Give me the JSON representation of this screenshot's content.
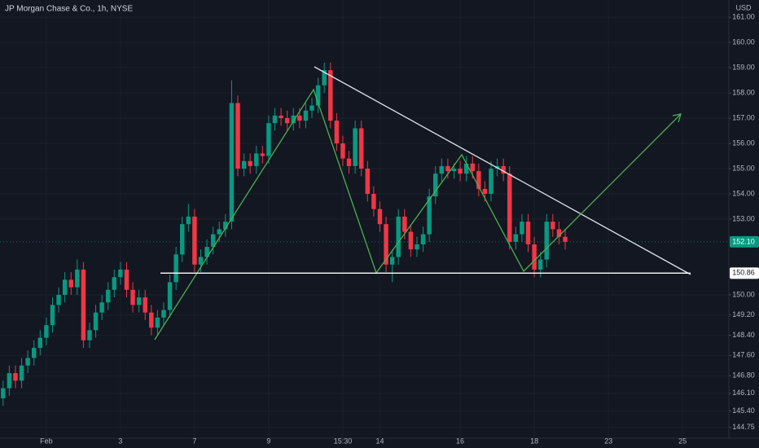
{
  "chart_data": {
    "type": "candlestick",
    "title": "JP Morgan Chase & Co., 1h, NYSE",
    "currency": "USD",
    "up_color": "#089981",
    "down_color": "#f23645",
    "grid": true,
    "categories": [
      null,
      null,
      null,
      null,
      null,
      null,
      null,
      "Feb",
      null,
      null,
      null,
      null,
      null,
      null,
      null,
      null,
      null,
      null,
      null,
      "3",
      null,
      null,
      null,
      null,
      null,
      null,
      null,
      null,
      null,
      null,
      null,
      "7",
      null,
      null,
      null,
      null,
      null,
      null,
      null,
      null,
      null,
      null,
      null,
      "9",
      null,
      null,
      null,
      null,
      null,
      null,
      null,
      null,
      null,
      null,
      null,
      "15:30",
      null,
      null,
      null,
      null,
      null,
      "14",
      null,
      null,
      null,
      null,
      null,
      null,
      null,
      null,
      null,
      null,
      null,
      null,
      "16",
      null,
      null,
      null,
      null,
      null,
      null,
      null,
      null,
      null,
      null,
      null,
      "18",
      null,
      null,
      null,
      null,
      null,
      null,
      null,
      null,
      null,
      null,
      null,
      "23",
      null,
      null,
      null,
      null,
      null,
      null,
      null,
      null,
      null,
      null,
      null,
      "25",
      null,
      null,
      null,
      null,
      null,
      null,
      null
    ],
    "open": [
      145.9,
      146.3,
      146.9,
      146.6,
      147.2,
      147.5,
      147.9,
      148.3,
      148.8,
      149.6,
      150.0,
      150.6,
      150.3,
      151.0,
      148.2,
      148.6,
      149.3,
      149.7,
      150.2,
      150.7,
      151.0,
      150.2,
      149.6,
      149.9,
      149.3,
      148.7,
      149.1,
      149.4,
      150.5,
      151.6,
      152.8,
      153.1,
      151.2,
      151.5,
      151.9,
      152.4,
      152.6,
      152.9,
      157.6,
      155.0,
      155.3,
      155.1,
      155.6,
      155.5,
      156.8,
      157.1,
      157.0,
      156.8,
      157.1,
      156.9,
      157.3,
      157.5,
      158.3,
      158.9,
      156.9,
      156.0,
      155.4,
      155.1,
      156.6,
      155.0,
      154.0,
      153.4,
      152.8,
      151.2,
      151.5,
      153.1,
      152.5,
      151.8,
      152.0,
      152.4,
      153.9,
      154.8,
      155.1,
      154.9,
      155.0,
      154.8,
      155.2,
      154.9,
      154.2,
      154.0,
      155.0,
      155.1,
      154.8,
      152.1,
      152.4,
      152.9,
      152.0,
      151.0,
      151.4,
      152.9,
      152.6,
      152.3,
      null,
      null,
      null,
      null,
      null,
      null,
      null,
      null,
      null,
      null,
      null,
      null,
      null,
      null,
      null,
      null,
      null,
      null,
      null,
      null,
      null,
      null,
      null,
      null,
      null,
      null
    ],
    "high": [
      146.6,
      147.2,
      147.2,
      147.5,
      147.8,
      148.2,
      148.6,
      149.1,
      149.9,
      150.3,
      150.9,
      150.9,
      151.4,
      151.3,
      148.9,
      149.6,
      150.0,
      150.5,
      151.0,
      151.3,
      151.3,
      150.5,
      150.2,
      150.2,
      149.6,
      149.4,
      149.7,
      150.8,
      151.9,
      153.1,
      153.6,
      153.4,
      151.8,
      152.2,
      152.7,
      152.9,
      153.2,
      158.5,
      157.9,
      155.6,
      155.6,
      155.9,
      155.9,
      157.1,
      157.4,
      157.4,
      157.3,
      157.4,
      157.4,
      157.6,
      157.8,
      158.6,
      159.2,
      159.2,
      157.2,
      156.3,
      155.7,
      156.9,
      156.9,
      155.3,
      154.3,
      153.7,
      153.1,
      151.8,
      153.4,
      153.4,
      152.8,
      152.3,
      152.7,
      154.2,
      155.1,
      155.4,
      155.4,
      155.2,
      155.3,
      155.5,
      155.5,
      155.2,
      154.5,
      155.3,
      155.4,
      155.4,
      155.1,
      152.7,
      153.2,
      153.2,
      152.3,
      151.7,
      153.2,
      153.2,
      152.9,
      152.6,
      null,
      null,
      null,
      null,
      null,
      null,
      null,
      null,
      null,
      null,
      null,
      null,
      null,
      null,
      null,
      null,
      null,
      null,
      null,
      null,
      null,
      null,
      null,
      null,
      null,
      null
    ],
    "low": [
      145.6,
      146.0,
      146.3,
      146.3,
      146.9,
      147.2,
      147.6,
      148.0,
      148.5,
      149.3,
      149.7,
      150.0,
      150.0,
      147.9,
      147.9,
      148.3,
      149.0,
      149.4,
      149.9,
      150.4,
      149.9,
      149.3,
      149.3,
      149.0,
      148.4,
      148.4,
      148.8,
      149.1,
      150.2,
      151.3,
      152.5,
      150.9,
      150.9,
      151.2,
      151.6,
      152.1,
      152.3,
      152.6,
      154.7,
      154.7,
      154.8,
      154.8,
      155.2,
      155.2,
      156.5,
      156.7,
      156.5,
      156.5,
      156.6,
      156.6,
      157.0,
      157.2,
      158.0,
      156.6,
      155.7,
      155.1,
      154.8,
      154.8,
      154.7,
      153.7,
      153.1,
      152.5,
      150.9,
      150.5,
      151.2,
      152.2,
      151.5,
      151.5,
      151.7,
      152.1,
      153.6,
      154.5,
      154.6,
      154.6,
      154.5,
      154.5,
      154.6,
      153.9,
      153.7,
      153.7,
      154.7,
      154.5,
      151.8,
      151.8,
      152.1,
      151.7,
      150.7,
      150.7,
      151.1,
      152.3,
      152.0,
      151.8,
      null,
      null,
      null,
      null,
      null,
      null,
      null,
      null,
      null,
      null,
      null,
      null,
      null,
      null,
      null,
      null,
      null,
      null,
      null,
      null,
      null,
      null,
      null,
      null,
      null,
      null
    ],
    "close": [
      146.3,
      146.9,
      146.6,
      147.2,
      147.5,
      147.9,
      148.3,
      148.8,
      149.6,
      150.0,
      150.6,
      150.3,
      151.0,
      148.2,
      148.6,
      149.3,
      149.7,
      150.2,
      150.7,
      151.0,
      150.2,
      149.6,
      149.9,
      149.3,
      148.7,
      149.1,
      149.4,
      150.5,
      151.6,
      152.8,
      153.1,
      151.2,
      151.5,
      151.9,
      152.4,
      152.6,
      152.9,
      157.6,
      155.0,
      155.3,
      155.1,
      155.6,
      155.5,
      156.8,
      157.1,
      157.0,
      156.8,
      157.1,
      156.9,
      157.3,
      157.5,
      158.3,
      158.9,
      156.9,
      156.0,
      155.4,
      155.1,
      156.6,
      155.0,
      154.0,
      153.4,
      152.8,
      151.2,
      151.5,
      153.1,
      152.5,
      151.8,
      152.0,
      152.4,
      153.9,
      154.8,
      155.1,
      154.9,
      155.0,
      154.8,
      155.2,
      154.9,
      154.2,
      154.0,
      155.0,
      155.1,
      154.8,
      152.1,
      152.4,
      152.9,
      152.0,
      151.0,
      151.4,
      152.9,
      152.6,
      152.3,
      152.1,
      null,
      null,
      null,
      null,
      null,
      null,
      null,
      null,
      null,
      null,
      null,
      null,
      null,
      null,
      null,
      null,
      null,
      null,
      null,
      null,
      null,
      null,
      null,
      null,
      null,
      null
    ],
    "ylim": [
      144.32,
      161.68
    ],
    "yticks": [
      {
        "value": 161,
        "label": "161.00"
      },
      {
        "value": 160,
        "label": "160.00"
      },
      {
        "value": 159,
        "label": "159.00"
      },
      {
        "value": 158,
        "label": "158.00"
      },
      {
        "value": 157,
        "label": "157.00"
      },
      {
        "value": 156,
        "label": "156.00"
      },
      {
        "value": 155,
        "label": "155.00"
      },
      {
        "value": 154,
        "label": "154.00"
      },
      {
        "value": 153,
        "label": "153.00"
      },
      {
        "value": 150,
        "label": "150.00"
      },
      {
        "value": 149.2,
        "label": "149.20"
      },
      {
        "value": 148.4,
        "label": "148.40"
      },
      {
        "value": 147.6,
        "label": "147.60"
      },
      {
        "value": 146.8,
        "label": "146.80"
      },
      {
        "value": 146.1,
        "label": "146.10"
      },
      {
        "value": 145.4,
        "label": "145.40"
      },
      {
        "value": 144.75,
        "label": "144.75"
      }
    ],
    "price_lines": [
      {
        "value": 152.1,
        "label": "152.10",
        "color": "#089981",
        "style": "dotted"
      },
      {
        "value": 150.86,
        "label": "150.86",
        "color": "#ffffff",
        "style": "solid"
      }
    ]
  }
}
